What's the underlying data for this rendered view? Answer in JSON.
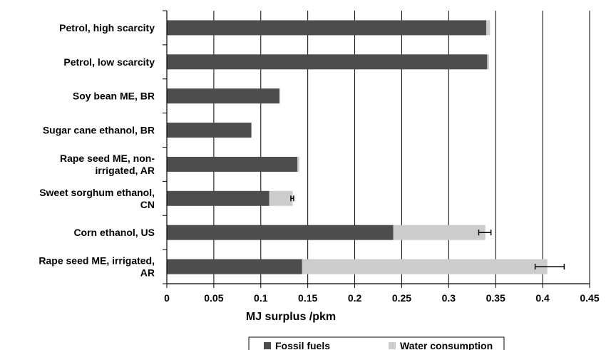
{
  "chart_data": {
    "type": "bar",
    "orientation": "horizontal",
    "stacked": true,
    "categories": [
      [
        "Petrol, high scarcity"
      ],
      [
        "Petrol, low scarcity"
      ],
      [
        "Soy bean ME, BR"
      ],
      [
        "Sugar cane ethanol, BR"
      ],
      [
        "Rape seed ME, non-",
        "irrigated, AR"
      ],
      [
        "Sweet sorghum ethanol,",
        "CN"
      ],
      [
        "Corn ethanol, US"
      ],
      [
        "Rape seed ME, irrigated,",
        "AR"
      ]
    ],
    "series": [
      {
        "name": "Fossil fuels",
        "color": "#4d4d4d",
        "values": [
          0.34,
          0.341,
          0.12,
          0.09,
          0.139,
          0.109,
          0.241,
          0.144
        ]
      },
      {
        "name": "Water consumption",
        "color": "#cccccc",
        "values": [
          0.004,
          0.002,
          0.0,
          0.0,
          0.002,
          0.025,
          0.098,
          0.261
        ]
      }
    ],
    "error_bars": [
      null,
      null,
      null,
      null,
      null,
      [
        0.132,
        0.135
      ],
      [
        0.332,
        0.345
      ],
      [
        0.392,
        0.423
      ]
    ],
    "xlim": [
      0,
      0.45
    ],
    "xticks": [
      "0",
      "0.05",
      "0.1",
      "0.15",
      "0.2",
      "0.25",
      "0.3",
      "0.35",
      "0.4",
      "0.45"
    ],
    "xlabel": "MJ surplus /pkm",
    "ylabel": "",
    "title": "",
    "grid": "vertical",
    "legend_position": "bottom"
  }
}
